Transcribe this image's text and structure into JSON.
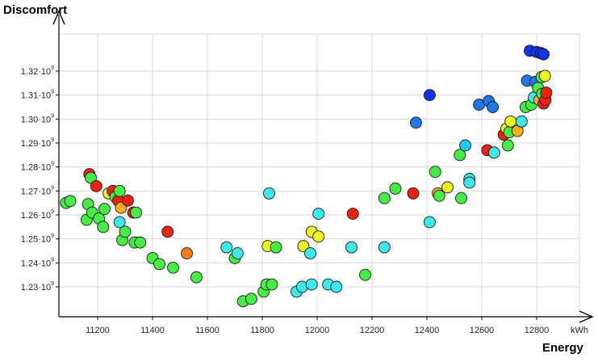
{
  "chart_data": {
    "type": "scatter",
    "title": "",
    "xlabel": "Energy",
    "ylabel": "Discomfort",
    "x_unit": "kWh",
    "xlim": [
      11060,
      12870
    ],
    "ylim": [
      1222000000,
      1330000000
    ],
    "x_ticks": [
      11200,
      11400,
      11600,
      11800,
      12000,
      12200,
      12400,
      12600,
      12800
    ],
    "x_tick_labels": [
      "11200",
      "11400",
      "11600",
      "11800",
      "12000",
      "12200",
      "12400",
      "12600",
      "12800"
    ],
    "y_ticks": [
      1230000000,
      1240000000,
      1250000000,
      1260000000,
      1270000000,
      1280000000,
      1290000000,
      1300000000,
      1310000000,
      1320000000
    ],
    "y_tick_labels": [
      {
        "mantissa": "1.23·10",
        "exp": "9"
      },
      {
        "mantissa": "1.24·10",
        "exp": "9"
      },
      {
        "mantissa": "1.25·10",
        "exp": "9"
      },
      {
        "mantissa": "1.26·10",
        "exp": "9"
      },
      {
        "mantissa": "1.27·10",
        "exp": "9"
      },
      {
        "mantissa": "1.28·10",
        "exp": "9"
      },
      {
        "mantissa": "1.29·10",
        "exp": "9"
      },
      {
        "mantissa": "1.30·10",
        "exp": "9"
      },
      {
        "mantissa": "1.31·10",
        "exp": "9"
      },
      {
        "mantissa": "1.32·10",
        "exp": "9"
      }
    ],
    "grid": true,
    "legend": "none",
    "colors": {
      "red": "#ee2211",
      "orange": "#ff7a1c",
      "amber": "#ffad1f",
      "yellow": "#eef222",
      "green": "#44ee44",
      "cyan": "#3ee8ea",
      "skyblue": "#1fc8f0",
      "blue": "#1e78ea",
      "darkblue": "#1333ee"
    },
    "points": [
      {
        "x": 11085,
        "y": 1265000000,
        "c": "green"
      },
      {
        "x": 11100,
        "y": 1265800000,
        "c": "green"
      },
      {
        "x": 11160,
        "y": 1258000000,
        "c": "green"
      },
      {
        "x": 11165,
        "y": 1264500000,
        "c": "green"
      },
      {
        "x": 11170,
        "y": 1277000000,
        "c": "red"
      },
      {
        "x": 11175,
        "y": 1275500000,
        "c": "green"
      },
      {
        "x": 11180,
        "y": 1261000000,
        "c": "green"
      },
      {
        "x": 11195,
        "y": 1272000000,
        "c": "red"
      },
      {
        "x": 11205,
        "y": 1258500000,
        "c": "green"
      },
      {
        "x": 11220,
        "y": 1255000000,
        "c": "green"
      },
      {
        "x": 11225,
        "y": 1262500000,
        "c": "green"
      },
      {
        "x": 11240,
        "y": 1269000000,
        "c": "yellow"
      },
      {
        "x": 11255,
        "y": 1270000000,
        "c": "red"
      },
      {
        "x": 11265,
        "y": 1267500000,
        "c": "green"
      },
      {
        "x": 11275,
        "y": 1266000000,
        "c": "red"
      },
      {
        "x": 11280,
        "y": 1257000000,
        "c": "cyan"
      },
      {
        "x": 11280,
        "y": 1270000000,
        "c": "green"
      },
      {
        "x": 11285,
        "y": 1263000000,
        "c": "amber"
      },
      {
        "x": 11290,
        "y": 1249500000,
        "c": "green"
      },
      {
        "x": 11300,
        "y": 1253000000,
        "c": "green"
      },
      {
        "x": 11310,
        "y": 1266000000,
        "c": "red"
      },
      {
        "x": 11330,
        "y": 1261000000,
        "c": "red"
      },
      {
        "x": 11335,
        "y": 1248500000,
        "c": "green"
      },
      {
        "x": 11340,
        "y": 1261000000,
        "c": "green"
      },
      {
        "x": 11355,
        "y": 1248500000,
        "c": "green"
      },
      {
        "x": 11400,
        "y": 1242000000,
        "c": "green"
      },
      {
        "x": 11425,
        "y": 1239500000,
        "c": "green"
      },
      {
        "x": 11455,
        "y": 1253000000,
        "c": "red"
      },
      {
        "x": 11475,
        "y": 1238000000,
        "c": "green"
      },
      {
        "x": 11525,
        "y": 1244000000,
        "c": "orange"
      },
      {
        "x": 11560,
        "y": 1234000000,
        "c": "green"
      },
      {
        "x": 11670,
        "y": 1246500000,
        "c": "cyan"
      },
      {
        "x": 11700,
        "y": 1242000000,
        "c": "green"
      },
      {
        "x": 11710,
        "y": 1244000000,
        "c": "cyan"
      },
      {
        "x": 11730,
        "y": 1224000000,
        "c": "green"
      },
      {
        "x": 11760,
        "y": 1225000000,
        "c": "green"
      },
      {
        "x": 11805,
        "y": 1228000000,
        "c": "green"
      },
      {
        "x": 11815,
        "y": 1231000000,
        "c": "green"
      },
      {
        "x": 11820,
        "y": 1247000000,
        "c": "yellow"
      },
      {
        "x": 11825,
        "y": 1269000000,
        "c": "cyan"
      },
      {
        "x": 11835,
        "y": 1231000000,
        "c": "green"
      },
      {
        "x": 11850,
        "y": 1246500000,
        "c": "green"
      },
      {
        "x": 11925,
        "y": 1228000000,
        "c": "cyan"
      },
      {
        "x": 11945,
        "y": 1230000000,
        "c": "cyan"
      },
      {
        "x": 11950,
        "y": 1247000000,
        "c": "yellow"
      },
      {
        "x": 11975,
        "y": 1244000000,
        "c": "cyan"
      },
      {
        "x": 11980,
        "y": 1231000000,
        "c": "cyan"
      },
      {
        "x": 11980,
        "y": 1253000000,
        "c": "yellow"
      },
      {
        "x": 12005,
        "y": 1251000000,
        "c": "yellow"
      },
      {
        "x": 12005,
        "y": 1260500000,
        "c": "cyan"
      },
      {
        "x": 12040,
        "y": 1231000000,
        "c": "cyan"
      },
      {
        "x": 12070,
        "y": 1230000000,
        "c": "cyan"
      },
      {
        "x": 12125,
        "y": 1246500000,
        "c": "cyan"
      },
      {
        "x": 12130,
        "y": 1260500000,
        "c": "red"
      },
      {
        "x": 12175,
        "y": 1235000000,
        "c": "green"
      },
      {
        "x": 12245,
        "y": 1246500000,
        "c": "cyan"
      },
      {
        "x": 12245,
        "y": 1267000000,
        "c": "green"
      },
      {
        "x": 12285,
        "y": 1271000000,
        "c": "green"
      },
      {
        "x": 12350,
        "y": 1269000000,
        "c": "red"
      },
      {
        "x": 12360,
        "y": 1298500000,
        "c": "blue"
      },
      {
        "x": 12410,
        "y": 1257000000,
        "c": "cyan"
      },
      {
        "x": 12410,
        "y": 1310000000,
        "c": "darkblue"
      },
      {
        "x": 12430,
        "y": 1278000000,
        "c": "green"
      },
      {
        "x": 12440,
        "y": 1269000000,
        "c": "amber"
      },
      {
        "x": 12445,
        "y": 1268000000,
        "c": "green"
      },
      {
        "x": 12475,
        "y": 1271500000,
        "c": "yellow"
      },
      {
        "x": 12520,
        "y": 1285000000,
        "c": "green"
      },
      {
        "x": 12525,
        "y": 1267000000,
        "c": "green"
      },
      {
        "x": 12540,
        "y": 1289000000,
        "c": "skyblue"
      },
      {
        "x": 12555,
        "y": 1275000000,
        "c": "cyan"
      },
      {
        "x": 12555,
        "y": 1273500000,
        "c": "cyan"
      },
      {
        "x": 12590,
        "y": 1306000000,
        "c": "blue"
      },
      {
        "x": 12620,
        "y": 1287000000,
        "c": "red"
      },
      {
        "x": 12625,
        "y": 1307500000,
        "c": "blue"
      },
      {
        "x": 12640,
        "y": 1305000000,
        "c": "blue"
      },
      {
        "x": 12645,
        "y": 1286000000,
        "c": "cyan"
      },
      {
        "x": 12680,
        "y": 1293500000,
        "c": "red"
      },
      {
        "x": 12690,
        "y": 1296000000,
        "c": "yellow"
      },
      {
        "x": 12695,
        "y": 1289000000,
        "c": "green"
      },
      {
        "x": 12700,
        "y": 1294500000,
        "c": "green"
      },
      {
        "x": 12705,
        "y": 1299000000,
        "c": "yellow"
      },
      {
        "x": 12730,
        "y": 1295000000,
        "c": "amber"
      },
      {
        "x": 12745,
        "y": 1299000000,
        "c": "cyan"
      },
      {
        "x": 12760,
        "y": 1305000000,
        "c": "green"
      },
      {
        "x": 12765,
        "y": 1316000000,
        "c": "blue"
      },
      {
        "x": 12775,
        "y": 1328500000,
        "c": "darkblue"
      },
      {
        "x": 12780,
        "y": 1306000000,
        "c": "green"
      },
      {
        "x": 12790,
        "y": 1309000000,
        "c": "cyan"
      },
      {
        "x": 12795,
        "y": 1315500000,
        "c": "blue"
      },
      {
        "x": 12800,
        "y": 1328000000,
        "c": "darkblue"
      },
      {
        "x": 12805,
        "y": 1313000000,
        "c": "green"
      },
      {
        "x": 12810,
        "y": 1308000000,
        "c": "amber"
      },
      {
        "x": 12815,
        "y": 1327500000,
        "c": "darkblue"
      },
      {
        "x": 12818,
        "y": 1317500000,
        "c": "green"
      },
      {
        "x": 12820,
        "y": 1310500000,
        "c": "green"
      },
      {
        "x": 12825,
        "y": 1306500000,
        "c": "red"
      },
      {
        "x": 12825,
        "y": 1327000000,
        "c": "darkblue"
      },
      {
        "x": 12830,
        "y": 1318000000,
        "c": "yellow"
      },
      {
        "x": 12832,
        "y": 1308000000,
        "c": "red"
      },
      {
        "x": 12835,
        "y": 1311000000,
        "c": "red"
      }
    ]
  }
}
